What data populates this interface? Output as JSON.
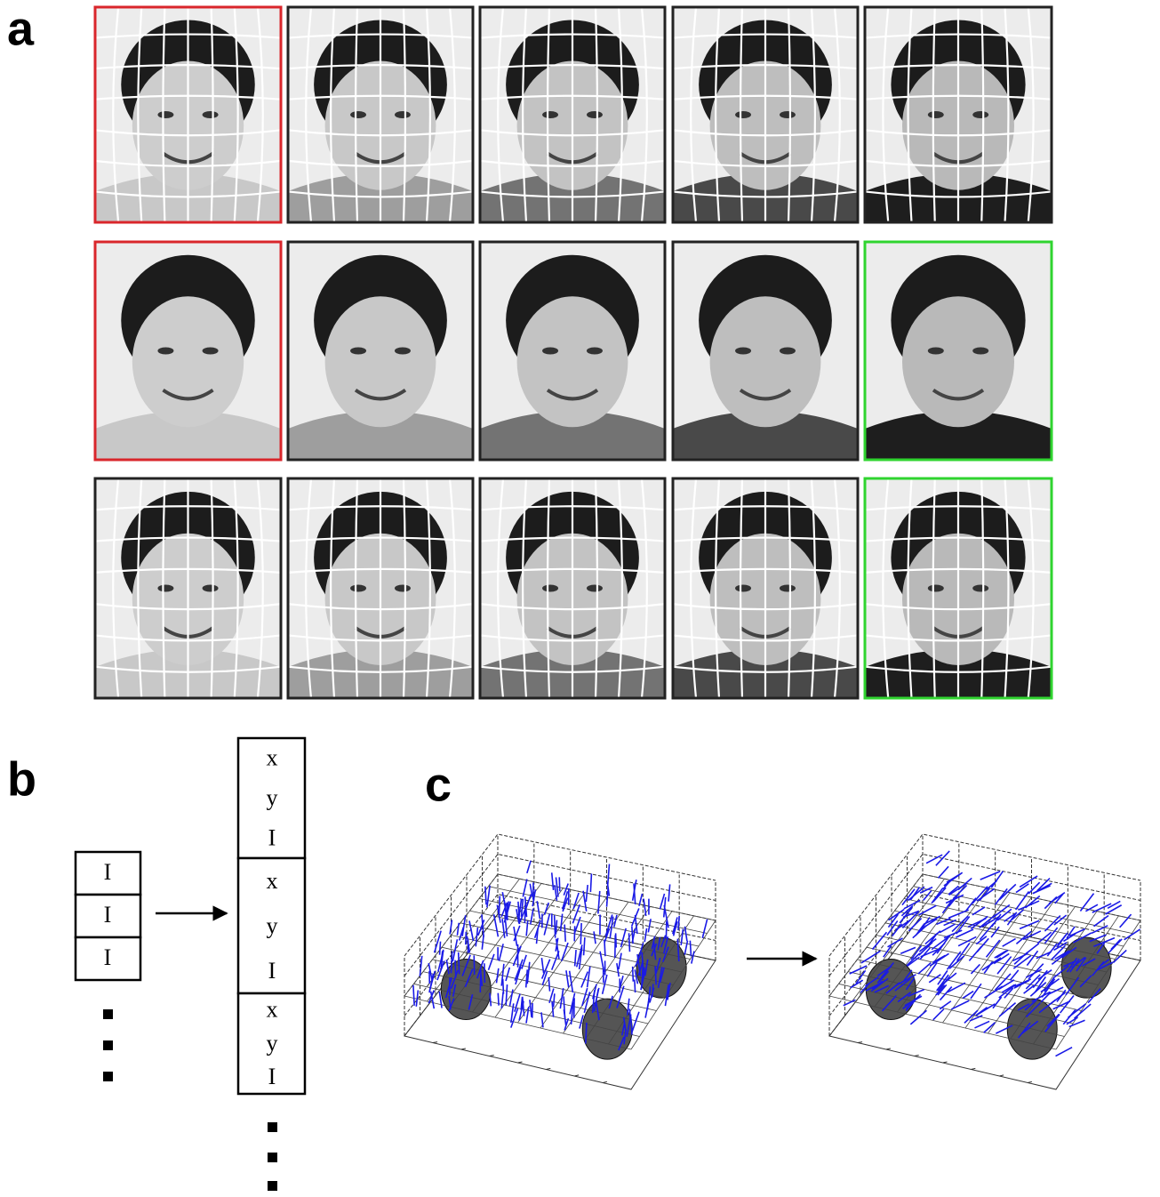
{
  "panels": {
    "a": {
      "label": "a"
    },
    "b": {
      "label": "b",
      "input_vector": [
        "I",
        "I",
        "I"
      ],
      "output_vector": [
        [
          "x",
          "y",
          "I"
        ],
        [
          "x",
          "y",
          "I"
        ],
        [
          "x",
          "y",
          "I"
        ]
      ]
    },
    "c": {
      "label": "c"
    }
  }
}
